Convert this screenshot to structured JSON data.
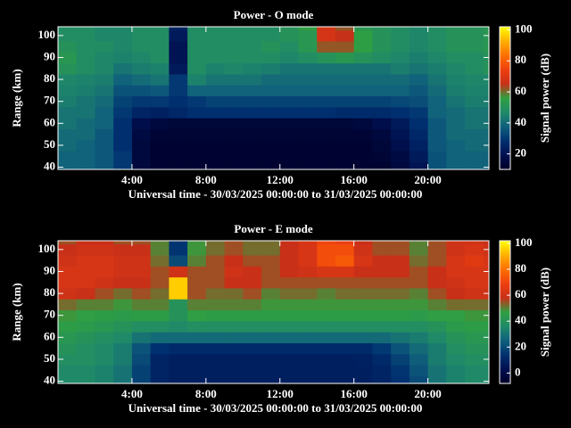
{
  "chart_data": [
    {
      "type": "heatmap",
      "title": "Power - O mode",
      "xlabel": "Universal time - 30/03/2025 00:00:00 to 31/03/2025 00:00:00",
      "ylabel": "Range (km)",
      "colorbar_label": "Signal power (dB)",
      "x_edges": [
        0,
        1,
        2,
        3,
        4,
        5,
        6,
        7,
        8,
        9,
        10,
        11,
        12,
        13,
        14,
        15,
        16,
        17,
        18,
        19,
        20,
        21,
        22,
        23,
        24
      ],
      "y_edges": [
        37.5,
        42.5,
        47.5,
        52.5,
        57.5,
        62.5,
        67.5,
        72.5,
        77.5,
        82.5,
        87.5,
        92.5,
        97.5,
        102.5,
        107.5
      ],
      "xlim": [
        0,
        23.3
      ],
      "ylim": [
        39,
        104
      ],
      "zlim": [
        10,
        102
      ],
      "xticks": [
        {
          "value": 4,
          "label": "4:00"
        },
        {
          "value": 8,
          "label": "8:00"
        },
        {
          "value": 12,
          "label": "12:00"
        },
        {
          "value": 16,
          "label": "16:00"
        },
        {
          "value": 20,
          "label": "20:00"
        }
      ],
      "yticks": [
        40,
        50,
        60,
        70,
        80,
        90,
        100
      ],
      "zticks": [
        20,
        40,
        60,
        80,
        100
      ],
      "colormap": [
        "#000028",
        "#001050",
        "#003070",
        "#10607c",
        "#208a68",
        "#30a040",
        "#c83018",
        "#ee4010",
        "#ff7000",
        "#ffb000",
        "#ffff00"
      ],
      "values": [
        [
          38,
          38,
          36,
          30,
          15,
          12,
          12,
          12,
          12,
          12,
          12,
          12,
          12,
          12,
          12,
          12,
          12,
          12,
          15,
          20,
          35,
          38,
          38,
          38
        ],
        [
          38,
          38,
          36,
          30,
          15,
          12,
          12,
          12,
          12,
          12,
          12,
          12,
          12,
          12,
          12,
          12,
          12,
          13,
          16,
          22,
          35,
          38,
          38,
          38
        ],
        [
          40,
          38,
          36,
          28,
          15,
          12,
          12,
          12,
          12,
          12,
          12,
          12,
          12,
          12,
          12,
          12,
          12,
          14,
          18,
          24,
          36,
          38,
          40,
          40
        ],
        [
          40,
          40,
          36,
          28,
          16,
          13,
          13,
          13,
          13,
          13,
          13,
          13,
          13,
          13,
          13,
          13,
          13,
          15,
          20,
          26,
          36,
          40,
          40,
          40
        ],
        [
          42,
          40,
          38,
          28,
          18,
          15,
          14,
          14,
          14,
          14,
          14,
          14,
          14,
          14,
          14,
          14,
          15,
          18,
          22,
          28,
          36,
          40,
          42,
          42
        ],
        [
          42,
          42,
          38,
          30,
          25,
          24,
          26,
          28,
          28,
          28,
          28,
          28,
          28,
          28,
          28,
          27,
          27,
          27,
          28,
          30,
          38,
          40,
          42,
          42
        ],
        [
          44,
          42,
          40,
          32,
          30,
          30,
          28,
          30,
          32,
          32,
          32,
          32,
          32,
          32,
          32,
          32,
          32,
          32,
          33,
          34,
          38,
          42,
          44,
          44
        ],
        [
          45,
          44,
          42,
          35,
          35,
          36,
          30,
          38,
          38,
          38,
          38,
          38,
          38,
          38,
          38,
          38,
          38,
          38,
          38,
          36,
          40,
          44,
          45,
          45
        ],
        [
          46,
          45,
          44,
          38,
          40,
          42,
          30,
          45,
          42,
          42,
          42,
          40,
          40,
          40,
          40,
          40,
          40,
          40,
          40,
          38,
          42,
          45,
          46,
          46
        ],
        [
          50,
          48,
          46,
          42,
          44,
          45,
          22,
          48,
          45,
          46,
          45,
          44,
          42,
          42,
          42,
          42,
          42,
          42,
          44,
          42,
          44,
          46,
          48,
          50
        ],
        [
          52,
          48,
          46,
          45,
          46,
          48,
          20,
          48,
          48,
          48,
          48,
          48,
          46,
          48,
          50,
          52,
          50,
          48,
          46,
          44,
          46,
          48,
          48,
          50
        ],
        [
          50,
          48,
          48,
          46,
          48,
          48,
          20,
          48,
          48,
          48,
          48,
          50,
          48,
          52,
          62,
          62,
          55,
          50,
          48,
          46,
          48,
          50,
          50,
          52
        ],
        [
          48,
          48,
          46,
          46,
          48,
          48,
          22,
          48,
          48,
          48,
          48,
          48,
          50,
          52,
          68,
          65,
          55,
          50,
          48,
          46,
          48,
          50,
          50,
          52
        ],
        [
          48,
          48,
          46,
          46,
          48,
          48,
          24,
          48,
          48,
          48,
          48,
          48,
          50,
          55,
          68,
          62,
          52,
          50,
          48,
          46,
          48,
          50,
          50,
          52
        ]
      ]
    },
    {
      "type": "heatmap",
      "title": "Power - E mode",
      "xlabel": "Universal time - 30/03/2025 00:00:00 to 31/03/2025 00:00:00",
      "ylabel": "Range (km)",
      "colorbar_label": "Signal power (dB)",
      "x_edges": [
        0,
        1,
        2,
        3,
        4,
        5,
        6,
        7,
        8,
        9,
        10,
        11,
        12,
        13,
        14,
        15,
        16,
        17,
        18,
        19,
        20,
        21,
        22,
        23,
        24
      ],
      "y_edges": [
        37.5,
        42.5,
        47.5,
        52.5,
        57.5,
        62.5,
        67.5,
        72.5,
        77.5,
        82.5,
        87.5,
        92.5,
        97.5,
        102.5,
        107.5
      ],
      "xlim": [
        0,
        23.3
      ],
      "ylim": [
        39,
        104
      ],
      "zlim": [
        -8,
        102
      ],
      "xticks": [
        {
          "value": 4,
          "label": "4:00"
        },
        {
          "value": 8,
          "label": "8:00"
        },
        {
          "value": 12,
          "label": "12:00"
        },
        {
          "value": 16,
          "label": "16:00"
        },
        {
          "value": 20,
          "label": "20:00"
        }
      ],
      "yticks": [
        40,
        50,
        60,
        70,
        80,
        90,
        100
      ],
      "zticks": [
        0,
        20,
        40,
        60,
        80,
        100
      ],
      "colormap": [
        "#000028",
        "#001050",
        "#003070",
        "#10607c",
        "#208a68",
        "#30a040",
        "#c83018",
        "#ee4010",
        "#ff7000",
        "#ffb000",
        "#ffff00"
      ],
      "values": [
        [
          36,
          36,
          34,
          30,
          18,
          10,
          8,
          8,
          8,
          8,
          8,
          8,
          8,
          8,
          8,
          8,
          8,
          10,
          14,
          20,
          30,
          34,
          36,
          36
        ],
        [
          36,
          36,
          34,
          30,
          18,
          10,
          8,
          8,
          8,
          8,
          8,
          8,
          8,
          8,
          8,
          8,
          8,
          10,
          15,
          22,
          30,
          34,
          36,
          36
        ],
        [
          38,
          38,
          36,
          32,
          20,
          10,
          8,
          8,
          8,
          8,
          8,
          8,
          8,
          8,
          8,
          8,
          9,
          12,
          18,
          24,
          32,
          36,
          38,
          38
        ],
        [
          40,
          38,
          36,
          32,
          22,
          14,
          12,
          12,
          12,
          12,
          12,
          12,
          12,
          12,
          12,
          12,
          12,
          16,
          22,
          28,
          32,
          38,
          40,
          40
        ],
        [
          42,
          40,
          38,
          36,
          30,
          28,
          28,
          28,
          28,
          28,
          28,
          28,
          28,
          28,
          28,
          28,
          28,
          28,
          30,
          32,
          36,
          40,
          42,
          42
        ],
        [
          45,
          44,
          42,
          40,
          38,
          38,
          36,
          38,
          38,
          38,
          38,
          38,
          38,
          38,
          38,
          38,
          38,
          38,
          38,
          38,
          40,
          44,
          45,
          45
        ],
        [
          48,
          46,
          45,
          44,
          45,
          45,
          40,
          46,
          45,
          45,
          45,
          45,
          45,
          45,
          45,
          45,
          45,
          45,
          45,
          44,
          46,
          46,
          48,
          48
        ],
        [
          52,
          50,
          50,
          48,
          50,
          50,
          40,
          50,
          50,
          50,
          50,
          48,
          48,
          48,
          48,
          48,
          48,
          48,
          48,
          48,
          50,
          52,
          52,
          52
        ],
        [
          60,
          58,
          55,
          52,
          55,
          52,
          95,
          55,
          52,
          52,
          55,
          50,
          52,
          52,
          50,
          52,
          52,
          52,
          52,
          50,
          55,
          58,
          60,
          60
        ],
        [
          62,
          62,
          60,
          58,
          58,
          55,
          95,
          55,
          55,
          58,
          58,
          55,
          55,
          55,
          55,
          55,
          55,
          55,
          55,
          55,
          58,
          60,
          62,
          62
        ],
        [
          62,
          62,
          62,
          60,
          60,
          55,
          60,
          55,
          55,
          60,
          58,
          55,
          58,
          60,
          62,
          62,
          58,
          58,
          58,
          55,
          58,
          62,
          62,
          62
        ],
        [
          60,
          62,
          62,
          60,
          60,
          52,
          20,
          50,
          55,
          58,
          55,
          55,
          58,
          62,
          72,
          75,
          62,
          58,
          58,
          52,
          55,
          62,
          65,
          62
        ],
        [
          58,
          60,
          60,
          58,
          58,
          50,
          15,
          48,
          52,
          55,
          52,
          52,
          58,
          62,
          72,
          72,
          60,
          55,
          55,
          50,
          55,
          60,
          62,
          60
        ],
        [
          55,
          58,
          58,
          55,
          55,
          50,
          15,
          48,
          52,
          55,
          52,
          52,
          58,
          62,
          70,
          68,
          58,
          55,
          55,
          50,
          55,
          60,
          60,
          58
        ]
      ]
    }
  ]
}
